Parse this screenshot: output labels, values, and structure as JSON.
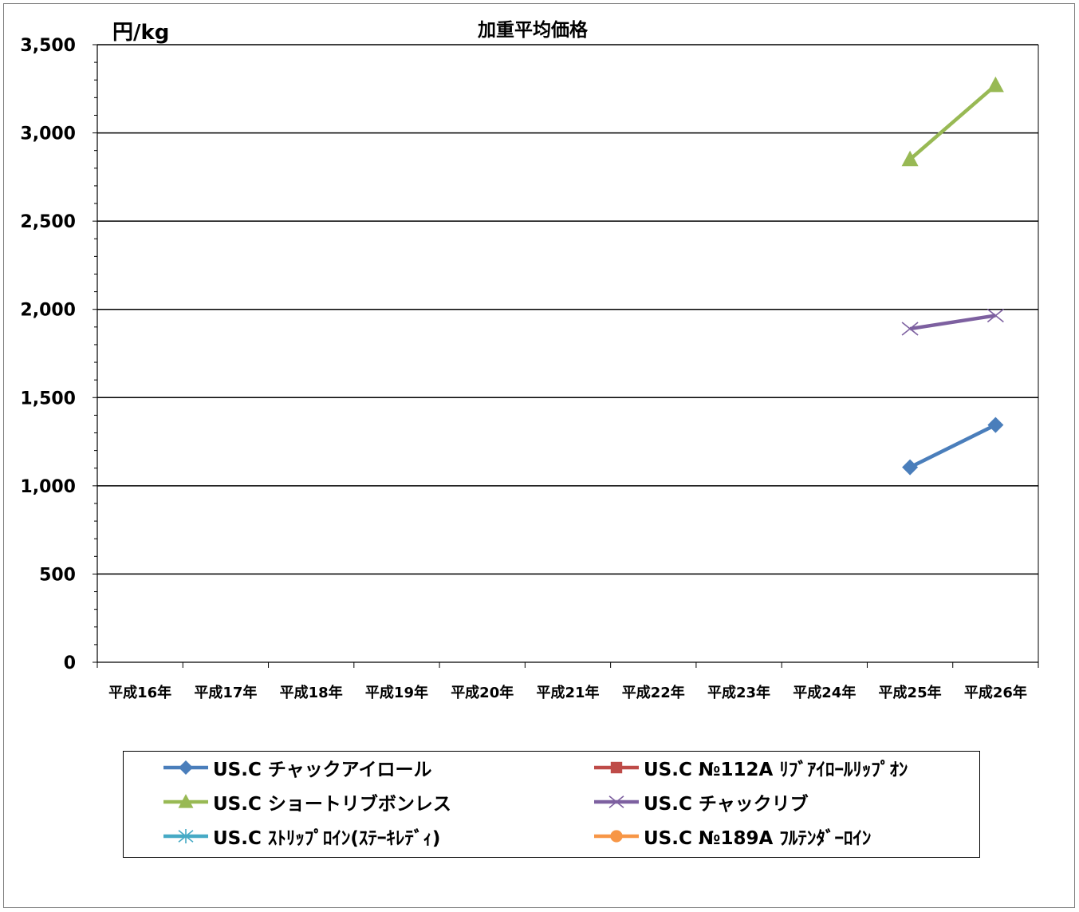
{
  "chart_data": {
    "type": "line",
    "title": "加重平均価格",
    "ylabel": "円/kg",
    "ylim": [
      0,
      3500
    ],
    "ytick_step": 500,
    "ytick_labels": [
      "0",
      "500",
      "1,000",
      "1,500",
      "2,000",
      "2,500",
      "3,000",
      "3,500"
    ],
    "grid": true,
    "legend_position": "bottom",
    "categories": [
      "平成16年",
      "平成17年",
      "平成18年",
      "平成19年",
      "平成20年",
      "平成21年",
      "平成22年",
      "平成23年",
      "平成24年",
      "平成25年",
      "平成26年"
    ],
    "series": [
      {
        "name": "US.C チャックアイロール",
        "color": "#4a7ebb",
        "marker": "diamond",
        "values": [
          null,
          null,
          null,
          null,
          null,
          null,
          null,
          null,
          null,
          1105,
          1345
        ]
      },
      {
        "name": "US.C №112A ﾘﾌﾞｱｲﾛｰﾙﾘｯﾌﾟｵﾝ",
        "color": "#be4b48",
        "marker": "square",
        "values": [
          null,
          null,
          null,
          null,
          null,
          null,
          null,
          null,
          null,
          null,
          null
        ]
      },
      {
        "name": "US.C ショートリブボンレス",
        "color": "#98b954",
        "marker": "triangle",
        "values": [
          null,
          null,
          null,
          null,
          null,
          null,
          null,
          null,
          null,
          2850,
          3270
        ]
      },
      {
        "name": "US.C チャックリブ",
        "color": "#7d60a0",
        "marker": "x",
        "values": [
          null,
          null,
          null,
          null,
          null,
          null,
          null,
          null,
          null,
          1890,
          1965
        ]
      },
      {
        "name": "US.C ｽﾄﾘｯﾌﾟﾛｲﾝ(ｽﾃｰｷﾚﾃﾞｨ)",
        "color": "#46aac5",
        "marker": "star",
        "values": [
          null,
          null,
          null,
          null,
          null,
          null,
          null,
          null,
          null,
          null,
          null
        ]
      },
      {
        "name": "US.C №189A ﾌﾙﾃﾝﾀﾞｰﾛｲﾝ",
        "color": "#f79646",
        "marker": "circle",
        "values": [
          null,
          null,
          null,
          null,
          null,
          null,
          null,
          null,
          null,
          null,
          null
        ]
      }
    ]
  }
}
